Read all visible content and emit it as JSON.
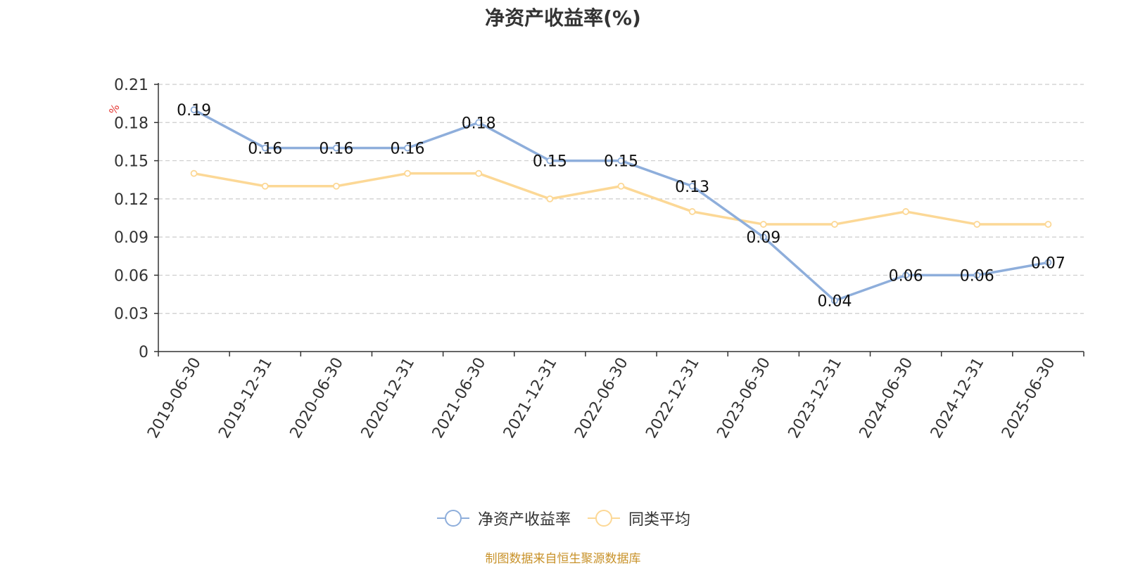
{
  "title": "净资产收益率(%)",
  "source": "制图数据来自恒生聚源数据库",
  "chart_data": {
    "type": "line",
    "title": "净资产收益率(%)",
    "ylabel": "%",
    "ylim": [
      0,
      0.21
    ],
    "yticks": [
      "0",
      "0.03",
      "0.06",
      "0.09",
      "0.12",
      "0.15",
      "0.18",
      "0.21"
    ],
    "grid": true,
    "legend_position": "bottom",
    "categories": [
      "2019-06-30",
      "2019-12-31",
      "2020-06-30",
      "2020-12-31",
      "2021-06-30",
      "2021-12-31",
      "2022-06-30",
      "2022-12-31",
      "2023-06-30",
      "2023-12-31",
      "2024-06-30",
      "2024-12-31",
      "2025-06-30"
    ],
    "series": [
      {
        "name": "净资产收益率",
        "color": "#8eaedb",
        "values": [
          0.19,
          0.16,
          0.16,
          0.16,
          0.18,
          0.15,
          0.15,
          0.13,
          0.09,
          0.04,
          0.06,
          0.06,
          0.07
        ],
        "data_labels": [
          "0.19",
          "0.16",
          "0.16",
          "0.16",
          "0.18",
          "0.15",
          "0.15",
          "0.13",
          "0.09",
          "0.04",
          "0.06",
          "0.06",
          "0.07"
        ]
      },
      {
        "name": "同类平均",
        "color": "#fcd896",
        "values": [
          0.14,
          0.13,
          0.13,
          0.14,
          0.14,
          0.12,
          0.13,
          0.11,
          0.1,
          0.1,
          0.11,
          0.1,
          0.1
        ]
      }
    ]
  }
}
